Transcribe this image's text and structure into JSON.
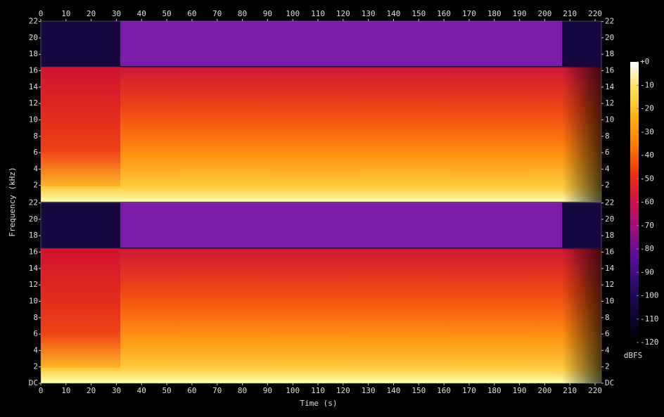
{
  "chart_data": [
    {
      "type": "spectrogram",
      "xlim": [
        0,
        222.5
      ],
      "xticks": [
        0,
        10,
        20,
        30,
        40,
        50,
        60,
        70,
        80,
        90,
        100,
        110,
        120,
        130,
        140,
        150,
        160,
        170,
        180,
        190,
        200,
        210,
        220
      ],
      "ylim": [
        0,
        22.05
      ],
      "yticks": [
        2,
        4,
        6,
        8,
        10,
        12,
        14,
        16,
        18,
        20,
        22
      ]
    },
    {
      "type": "spectrogram",
      "xlim": [
        0,
        222.5
      ],
      "xticks": [
        0,
        10,
        20,
        30,
        40,
        50,
        60,
        70,
        80,
        90,
        100,
        110,
        120,
        130,
        140,
        150,
        160,
        170,
        180,
        190,
        200,
        210,
        220
      ],
      "ylim": [
        0,
        22.05
      ],
      "yticks": [
        {
          "value": 0,
          "label": "DC"
        },
        2,
        4,
        6,
        8,
        10,
        12,
        14,
        16,
        18,
        20,
        22
      ]
    }
  ],
  "x_label": "Time (s)",
  "y_label": "Frequency (kHz)",
  "colorbar": {
    "label": "dBFS",
    "lim": [
      -120,
      0
    ],
    "ticks": [
      {
        "value": 0,
        "label": "+0"
      },
      -10,
      -20,
      -30,
      -40,
      -50,
      -60,
      -70,
      -80,
      -90,
      -100,
      -110,
      -120
    ],
    "colors": [
      "#000000",
      "#0e0636",
      "#2a0a6a",
      "#5a0c98",
      "#9a0e88",
      "#d0104a",
      "#f03010",
      "#ff7a00",
      "#ffb010",
      "#ffe050",
      "#ffffff"
    ]
  }
}
